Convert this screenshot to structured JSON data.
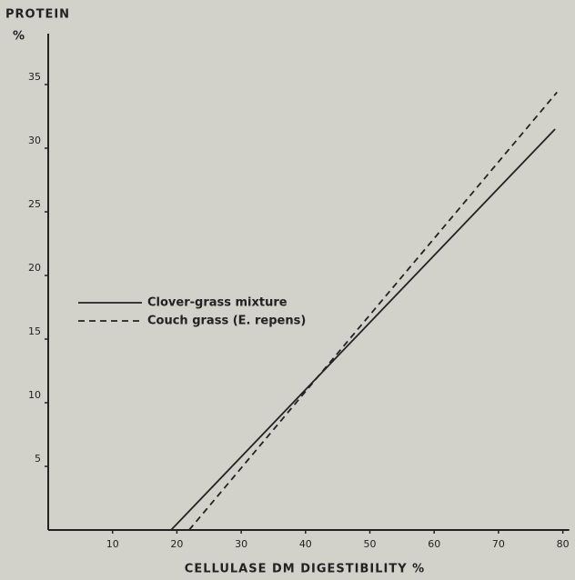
{
  "chart_data": {
    "type": "line",
    "ylabel": "PROTEIN",
    "yunit": "%",
    "xlabel": "CELLULASE  DM  DIGESTIBILITY  %",
    "xlim": [
      0,
      81
    ],
    "xticks": [
      10,
      20,
      30,
      40,
      50,
      60,
      70,
      80
    ],
    "ylim": [
      0,
      39
    ],
    "yticks": [
      5,
      10,
      15,
      20,
      25,
      30,
      35
    ],
    "grid": false,
    "series": [
      {
        "name": "Clover-grass mixture",
        "color": "#222222",
        "dashed": false,
        "x": [
          19.1,
          78.8
        ],
        "values": [
          0,
          31.5
        ]
      },
      {
        "name": "Couch grass (E. repens)",
        "color": "#222222",
        "dashed": true,
        "x": [
          21.9,
          79.1
        ],
        "values": [
          0,
          34.4
        ]
      }
    ]
  }
}
